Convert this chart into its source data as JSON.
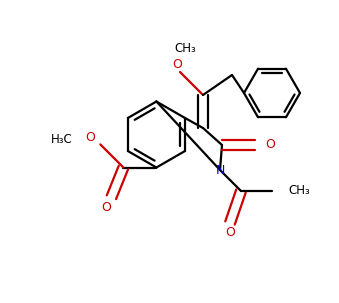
{
  "background_color": "#ffffff",
  "bond_color": "#000000",
  "oxygen_color": "#cc0000",
  "nitrogen_color": "#0000cc",
  "line_width": 1.6,
  "figsize": [
    3.39,
    3.03
  ],
  "dpi": 100,
  "xlim": [
    0,
    339
  ],
  "ylim": [
    0,
    303
  ]
}
